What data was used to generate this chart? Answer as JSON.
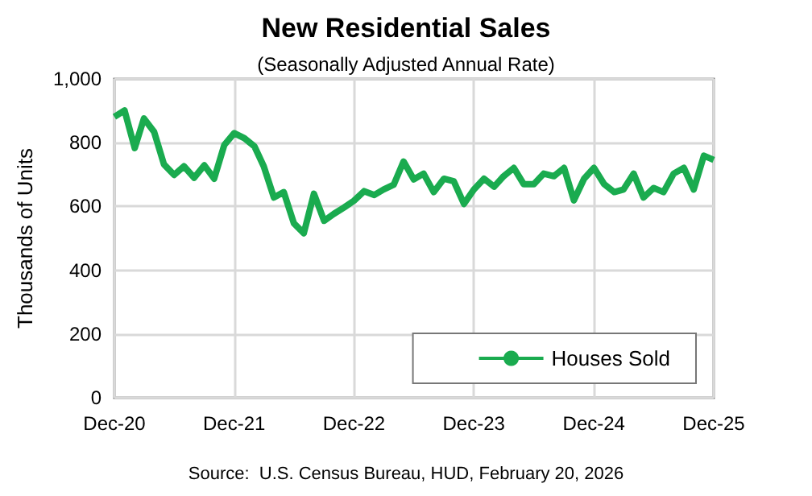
{
  "chart_data": {
    "type": "line",
    "title": "New Residential Sales",
    "subtitle": "(Seasonally Adjusted Annual Rate)",
    "ylabel": "Thousands of Units",
    "annotations": [
      "Source:  U.S. Census Bureau, HUD, February 20, 2026"
    ],
    "x": [
      "2020-12",
      "2021-01",
      "2021-02",
      "2021-03",
      "2021-04",
      "2021-05",
      "2021-06",
      "2021-07",
      "2021-08",
      "2021-09",
      "2021-10",
      "2021-11",
      "2021-12",
      "2022-01",
      "2022-02",
      "2022-03",
      "2022-04",
      "2022-05",
      "2022-06",
      "2022-07",
      "2022-08",
      "2022-09",
      "2022-10",
      "2022-11",
      "2022-12",
      "2023-01",
      "2023-02",
      "2023-03",
      "2023-04",
      "2023-05",
      "2023-06",
      "2023-07",
      "2023-08",
      "2023-09",
      "2023-10",
      "2023-11",
      "2023-12",
      "2024-01",
      "2024-02",
      "2024-03",
      "2024-04",
      "2024-05",
      "2024-06",
      "2024-07",
      "2024-08",
      "2024-09",
      "2024-10",
      "2024-11",
      "2024-12",
      "2025-01",
      "2025-02",
      "2025-03",
      "2025-04",
      "2025-05",
      "2025-06",
      "2025-07",
      "2025-08",
      "2025-09",
      "2025-10",
      "2025-11",
      "2025-12"
    ],
    "series": [
      {
        "name": "Houses Sold",
        "color": "#1aab4f",
        "values": [
          881,
          901,
          783,
          876,
          834,
          732,
          699,
          726,
          690,
          729,
          687,
          793,
          830,
          814,
          788,
          726,
          628,
          645,
          547,
          516,
          640,
          555,
          577,
          597,
          618,
          648,
          636,
          653,
          668,
          741,
          685,
          703,
          645,
          687,
          679,
          608,
          653,
          687,
          662,
          695,
          721,
          670,
          670,
          703,
          695,
          721,
          619,
          687,
          721,
          670,
          645,
          653,
          703,
          628,
          658,
          645,
          703,
          721,
          653,
          759,
          746
        ]
      }
    ],
    "xlim": [
      "2020-12",
      "2025-12"
    ],
    "xticks": [
      {
        "value": "2020-12",
        "label": "Dec-20"
      },
      {
        "value": "2021-12",
        "label": "Dec-21"
      },
      {
        "value": "2022-12",
        "label": "Dec-22"
      },
      {
        "value": "2023-12",
        "label": "Dec-23"
      },
      {
        "value": "2024-12",
        "label": "Dec-24"
      },
      {
        "value": "2025-12",
        "label": "Dec-25"
      }
    ],
    "ylim": [
      0,
      1000
    ],
    "yticks": [
      0,
      200,
      400,
      600,
      800,
      {
        "value": 1000,
        "label": "1,000"
      }
    ],
    "grid": true,
    "legend": "bottom right",
    "marker": "none",
    "line_style": "solid"
  }
}
